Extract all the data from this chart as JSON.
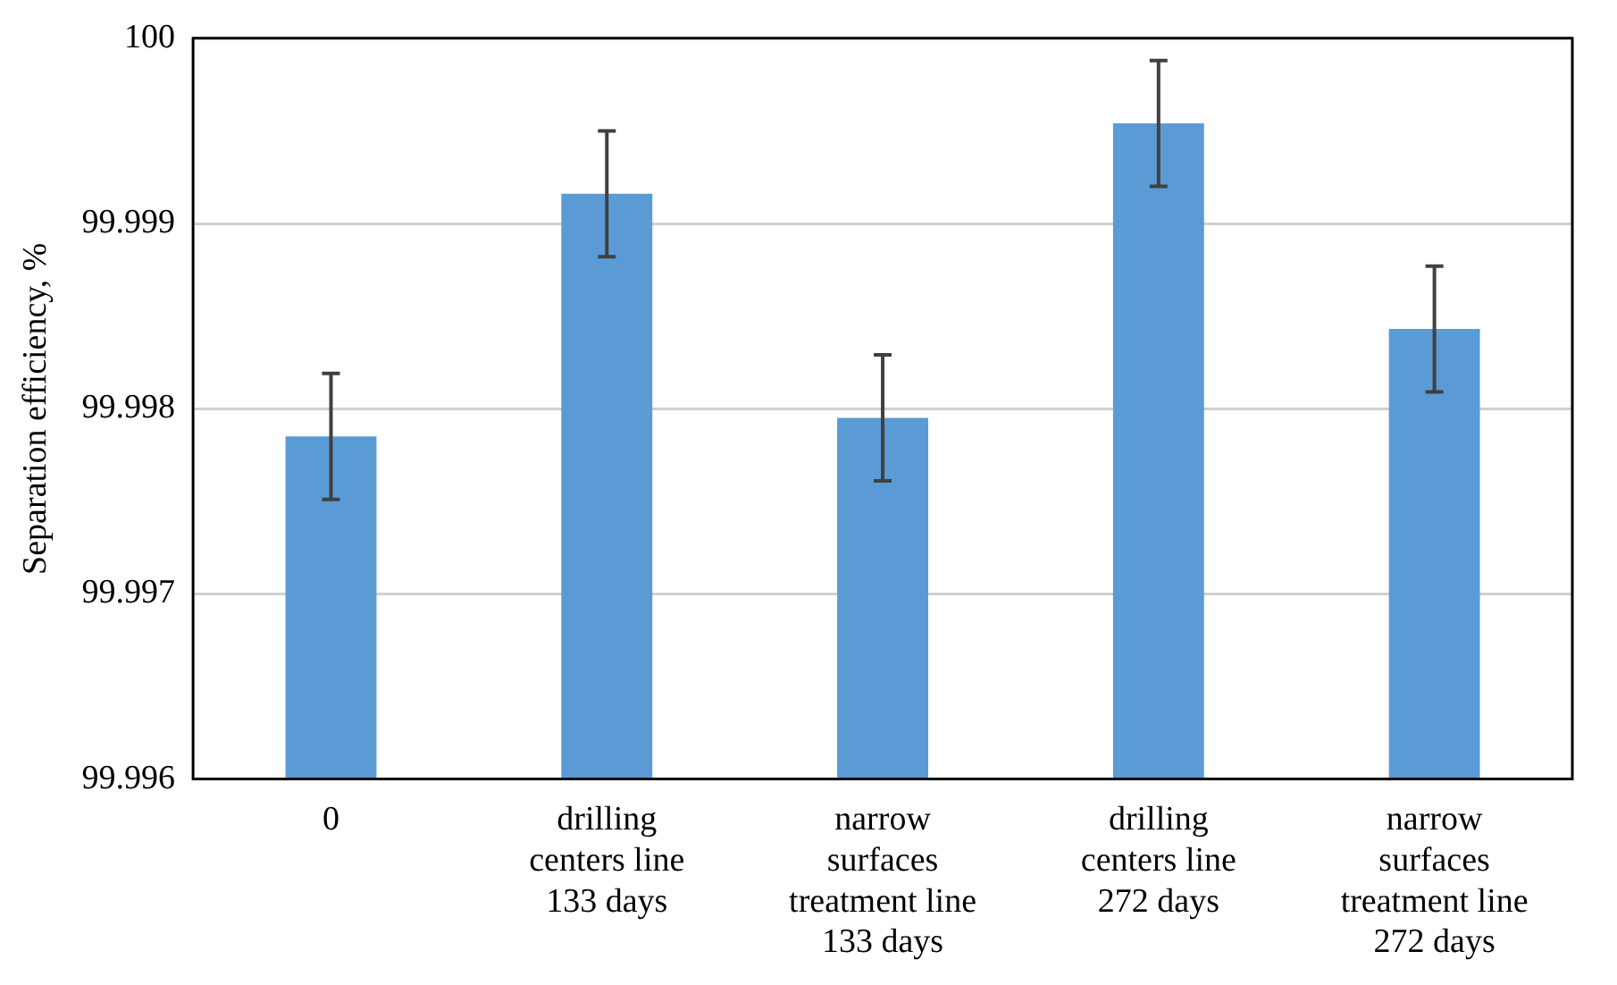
{
  "chart_data": {
    "type": "bar",
    "ylabel": "Separation efficiency, %",
    "categories": [
      "0",
      "drilling centers line 133 days",
      "narrow surfaces treatment line 133 days",
      "drilling centers line 272 days",
      "narrow surfaces treatment line 272 days"
    ],
    "values": [
      99.99785,
      99.99916,
      99.99795,
      99.99954,
      99.99843
    ],
    "errors": [
      0.00034,
      0.00034,
      0.00034,
      0.00034,
      0.00034
    ],
    "color": "#5b9bd5",
    "ylim": [
      99.996,
      100
    ],
    "yticks": [
      99.996,
      99.997,
      99.998,
      99.999,
      100
    ],
    "grid": "y"
  }
}
